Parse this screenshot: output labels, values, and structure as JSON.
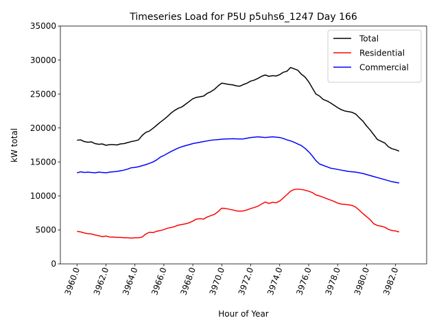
{
  "chart_data": {
    "type": "line",
    "title": "Timeseries Load for P5U p5uhs6_1247  Day 166",
    "xlabel": "Hour of Year",
    "ylabel": "kW total",
    "xlim": [
      3958.85,
      3984.15
    ],
    "ylim": [
      0,
      35000
    ],
    "x_ticks": [
      3960,
      3962,
      3964,
      3966,
      3968,
      3970,
      3972,
      3974,
      3976,
      3978,
      3980,
      3982
    ],
    "x_tick_labels": [
      "3960.0",
      "3962.0",
      "3964.0",
      "3966.0",
      "3968.0",
      "3970.0",
      "3972.0",
      "3974.0",
      "3976.0",
      "3978.0",
      "3980.0",
      "3982.0"
    ],
    "y_ticks": [
      0,
      5000,
      10000,
      15000,
      20000,
      25000,
      30000,
      35000
    ],
    "y_tick_labels": [
      "0",
      "5000",
      "10000",
      "15000",
      "20000",
      "25000",
      "30000",
      "35000"
    ],
    "legend_position": "upper right",
    "x_start": 3960,
    "x_step": 0.25,
    "series": [
      {
        "name": "Total",
        "color": "#000000",
        "values": [
          18200,
          18250,
          18000,
          17900,
          17950,
          17700,
          17600,
          17650,
          17450,
          17550,
          17550,
          17500,
          17650,
          17700,
          17850,
          18000,
          18100,
          18250,
          18900,
          19350,
          19550,
          19950,
          20400,
          20850,
          21250,
          21700,
          22200,
          22600,
          22900,
          23100,
          23500,
          23900,
          24300,
          24500,
          24600,
          24700,
          25100,
          25350,
          25700,
          26200,
          26600,
          26500,
          26400,
          26350,
          26200,
          26150,
          26400,
          26600,
          26900,
          27050,
          27300,
          27600,
          27800,
          27600,
          27700,
          27650,
          27850,
          28200,
          28350,
          28900,
          28700,
          28500,
          27900,
          27500,
          26800,
          25900,
          25000,
          24700,
          24200,
          24000,
          23700,
          23350,
          23000,
          22700,
          22500,
          22400,
          22300,
          22050,
          21500,
          21000,
          20300,
          19700,
          19000,
          18300,
          18050,
          17800,
          17250,
          16950,
          16800,
          16600
        ]
      },
      {
        "name": "Residential",
        "color": "#ff0000",
        "values": [
          4800,
          4700,
          4550,
          4450,
          4400,
          4250,
          4150,
          4000,
          4100,
          3950,
          3950,
          3900,
          3900,
          3850,
          3850,
          3800,
          3850,
          3850,
          3950,
          4400,
          4650,
          4600,
          4800,
          4900,
          5050,
          5250,
          5350,
          5500,
          5700,
          5800,
          5900,
          6050,
          6300,
          6600,
          6650,
          6600,
          6900,
          7100,
          7300,
          7700,
          8200,
          8150,
          8050,
          7950,
          7800,
          7750,
          7800,
          7950,
          8150,
          8300,
          8500,
          8800,
          9100,
          8900,
          9050,
          9000,
          9250,
          9700,
          10200,
          10700,
          10950,
          11000,
          10950,
          10850,
          10700,
          10500,
          10150,
          10000,
          9800,
          9600,
          9400,
          9200,
          8950,
          8800,
          8750,
          8700,
          8600,
          8350,
          7900,
          7400,
          6950,
          6500,
          5900,
          5650,
          5550,
          5400,
          5100,
          4900,
          4850,
          4700
        ]
      },
      {
        "name": "Commercial",
        "color": "#0000ff",
        "values": [
          13400,
          13550,
          13450,
          13500,
          13450,
          13400,
          13500,
          13450,
          13400,
          13500,
          13550,
          13600,
          13700,
          13800,
          13950,
          14150,
          14200,
          14300,
          14450,
          14600,
          14800,
          15000,
          15300,
          15700,
          15950,
          16250,
          16550,
          16800,
          17050,
          17250,
          17400,
          17550,
          17700,
          17800,
          17900,
          18000,
          18100,
          18200,
          18250,
          18300,
          18350,
          18380,
          18400,
          18420,
          18400,
          18380,
          18400,
          18500,
          18600,
          18650,
          18700,
          18650,
          18600,
          18650,
          18700,
          18650,
          18600,
          18450,
          18250,
          18100,
          17900,
          17650,
          17400,
          17000,
          16500,
          15900,
          15200,
          14700,
          14500,
          14300,
          14100,
          14000,
          13900,
          13800,
          13700,
          13600,
          13550,
          13500,
          13400,
          13300,
          13150,
          13000,
          12850,
          12700,
          12550,
          12400,
          12250,
          12100,
          12000,
          11900
        ]
      }
    ]
  }
}
